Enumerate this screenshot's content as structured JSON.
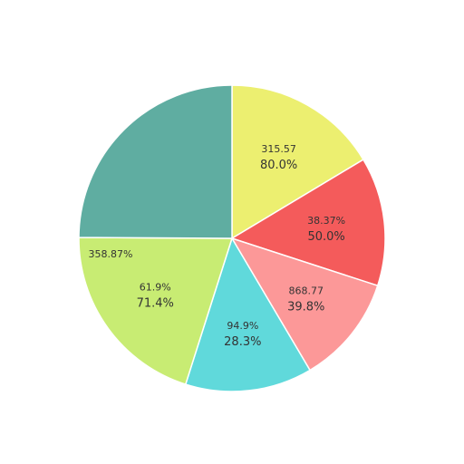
{
  "chart_data": {
    "type": "pie",
    "title": "",
    "start_angle_deg": 0,
    "direction": "clockwise",
    "slices": [
      {
        "value": 16.4,
        "color": "#ecef70",
        "top_label": "315.57",
        "bottom_label": "80.0%"
      },
      {
        "value": 13.6,
        "color": "#f45b5b",
        "top_label": "38.37%",
        "bottom_label": "50.0%"
      },
      {
        "value": 11.5,
        "color": "#fc9898",
        "top_label": "868.77",
        "bottom_label": "39.8%"
      },
      {
        "value": 13.4,
        "color": "#60d9db",
        "top_label": "94.9%",
        "bottom_label": "28.3%"
      },
      {
        "value": 20.2,
        "color": "#c8ec73",
        "top_label": "61.9%",
        "bottom_label": "71.4%"
      },
      {
        "value": 24.9,
        "color": "#5fada1",
        "top_label": "",
        "bottom_label": ""
      }
    ],
    "extra_labels": [
      {
        "text": "358.87%"
      }
    ]
  }
}
